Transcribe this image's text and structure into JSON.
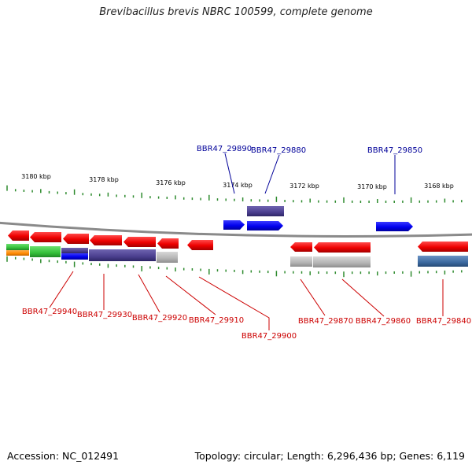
{
  "title": "Brevibacillus brevis NBRC 100599, complete genome",
  "footer": {
    "accession": "Accession: NC_012491",
    "summary": "Topology: circular; Length: 6,296,436 bp; Genes: 6,119"
  },
  "scale": {
    "ticks": [
      "3180 kbp",
      "3178 kbp",
      "3176 kbp",
      "3174 kbp",
      "3172 kbp",
      "3170 kbp",
      "3168 kbp"
    ]
  },
  "genes": {
    "top": [
      "BBR47_29890",
      "BBR47_29880",
      "BBR47_29850"
    ],
    "bottom": [
      "BBR47_29940",
      "BBR47_29930",
      "BBR47_29920",
      "BBR47_29910",
      "BBR47_29900",
      "BBR47_29870",
      "BBR47_29860",
      "BBR47_29840"
    ]
  },
  "colors": {
    "backbone": "#8a8a8a",
    "tick": "#2e8b2e",
    "forward_gene": "#0000ff",
    "reverse_gene": "#ee0000",
    "forward_label": "#000099",
    "reverse_label": "#cc0000",
    "cog_purple": "#4b3f8f",
    "cog_gray": "#b4b4b4",
    "cog_green": "#35c03a",
    "cog_orange": "#ff8a00",
    "cog_steel": "#3d6aa0"
  }
}
